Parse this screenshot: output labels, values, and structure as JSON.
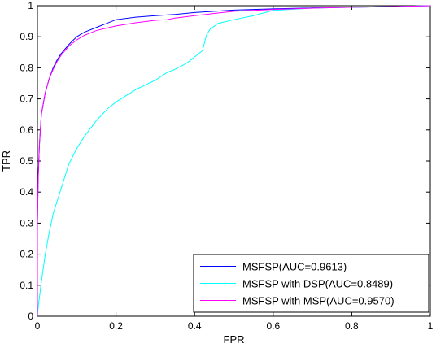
{
  "chart_data": {
    "type": "line",
    "title": "",
    "xlabel": "FPR",
    "ylabel": "TPR",
    "xlim": [
      0,
      1
    ],
    "ylim": [
      0,
      1
    ],
    "xticks": [
      0,
      0.2,
      0.4,
      0.6,
      0.8,
      1
    ],
    "yticks": [
      0,
      0.1,
      0.2,
      0.3,
      0.4,
      0.5,
      0.6,
      0.7,
      0.8,
      0.9,
      1
    ],
    "xtick_labels": [
      "0",
      "0.2",
      "0.4",
      "0.6",
      "0.8",
      "1"
    ],
    "ytick_labels": [
      "0",
      "0.1",
      "0.2",
      "0.3",
      "0.4",
      "0.5",
      "0.6",
      "0.7",
      "0.8",
      "0.9",
      "1"
    ],
    "grid": false,
    "legend_position": "bottom-right",
    "series": [
      {
        "name": "MSFSP(AUC=0.9613)",
        "color": "#0000ff",
        "points": [
          [
            0,
            0
          ],
          [
            0,
            0.3
          ],
          [
            0.002,
            0.45
          ],
          [
            0.005,
            0.55
          ],
          [
            0.01,
            0.65
          ],
          [
            0.02,
            0.72
          ],
          [
            0.03,
            0.765
          ],
          [
            0.04,
            0.8
          ],
          [
            0.05,
            0.825
          ],
          [
            0.06,
            0.845
          ],
          [
            0.08,
            0.875
          ],
          [
            0.1,
            0.9
          ],
          [
            0.12,
            0.915
          ],
          [
            0.15,
            0.93
          ],
          [
            0.2,
            0.955
          ],
          [
            0.25,
            0.963
          ],
          [
            0.3,
            0.968
          ],
          [
            0.35,
            0.972
          ],
          [
            0.4,
            0.978
          ],
          [
            0.45,
            0.982
          ],
          [
            0.5,
            0.986
          ],
          [
            0.6,
            0.99
          ],
          [
            0.7,
            0.993
          ],
          [
            0.8,
            0.995
          ],
          [
            0.9,
            0.997
          ],
          [
            1,
            1
          ]
        ]
      },
      {
        "name": "MSFSP with DSP(AUC=0.8489)",
        "color": "#00ffff",
        "points": [
          [
            0,
            0
          ],
          [
            0.002,
            0.03
          ],
          [
            0.005,
            0.06
          ],
          [
            0.01,
            0.11
          ],
          [
            0.02,
            0.2
          ],
          [
            0.03,
            0.27
          ],
          [
            0.04,
            0.33
          ],
          [
            0.05,
            0.37
          ],
          [
            0.06,
            0.41
          ],
          [
            0.07,
            0.45
          ],
          [
            0.08,
            0.49
          ],
          [
            0.1,
            0.54
          ],
          [
            0.12,
            0.58
          ],
          [
            0.15,
            0.63
          ],
          [
            0.18,
            0.67
          ],
          [
            0.2,
            0.69
          ],
          [
            0.25,
            0.73
          ],
          [
            0.3,
            0.76
          ],
          [
            0.33,
            0.785
          ],
          [
            0.35,
            0.795
          ],
          [
            0.38,
            0.815
          ],
          [
            0.4,
            0.835
          ],
          [
            0.42,
            0.855
          ],
          [
            0.425,
            0.88
          ],
          [
            0.43,
            0.905
          ],
          [
            0.44,
            0.925
          ],
          [
            0.46,
            0.943
          ],
          [
            0.5,
            0.955
          ],
          [
            0.55,
            0.968
          ],
          [
            0.6,
            0.985
          ],
          [
            0.7,
            0.992
          ],
          [
            0.8,
            0.995
          ],
          [
            0.9,
            0.997
          ],
          [
            1,
            1
          ]
        ]
      },
      {
        "name": "MSFSP with MSP(AUC=0.9570)",
        "color": "#ff00ff",
        "points": [
          [
            0,
            0
          ],
          [
            0,
            0.3
          ],
          [
            0.002,
            0.45
          ],
          [
            0.005,
            0.55
          ],
          [
            0.01,
            0.65
          ],
          [
            0.02,
            0.72
          ],
          [
            0.03,
            0.765
          ],
          [
            0.04,
            0.795
          ],
          [
            0.05,
            0.82
          ],
          [
            0.06,
            0.84
          ],
          [
            0.08,
            0.87
          ],
          [
            0.1,
            0.89
          ],
          [
            0.12,
            0.905
          ],
          [
            0.15,
            0.92
          ],
          [
            0.2,
            0.935
          ],
          [
            0.25,
            0.945
          ],
          [
            0.3,
            0.953
          ],
          [
            0.33,
            0.955
          ],
          [
            0.35,
            0.96
          ],
          [
            0.4,
            0.968
          ],
          [
            0.45,
            0.975
          ],
          [
            0.5,
            0.982
          ],
          [
            0.6,
            0.988
          ],
          [
            0.7,
            0.992
          ],
          [
            0.8,
            0.995
          ],
          [
            0.9,
            0.997
          ],
          [
            1,
            1
          ]
        ]
      }
    ]
  }
}
